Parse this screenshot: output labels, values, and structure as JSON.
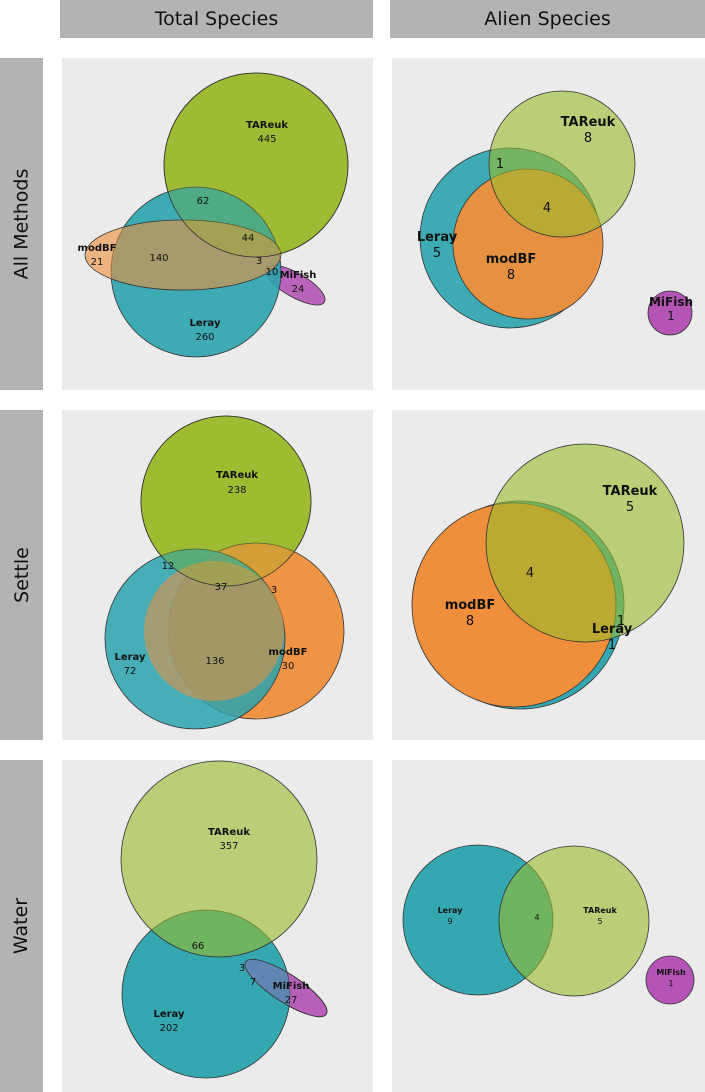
{
  "colors": {
    "tareuk": "#9aba2c",
    "leray": "#2aa3ae",
    "modbf": "#ef8f3c",
    "mifish": "#b455b6",
    "panel_bg": "#ebebeb",
    "header_bg": "#b3b3b3"
  },
  "columns": [
    "Total Species",
    "Alien Species"
  ],
  "rows": [
    "All Methods",
    "Settle",
    "Water"
  ],
  "panels": {
    "total_all": {
      "sets": {
        "tareuk": "TAReuk",
        "leray": "Leray",
        "modbf": "modBF",
        "mifish": "MiFish"
      },
      "counts": {
        "tareuk": "445",
        "leray": "260",
        "modbf": "21",
        "mifish": "24",
        "t_l": "62",
        "t_l_m": "44",
        "l_m": "140",
        "three": "3",
        "ten": "10"
      }
    },
    "alien_all": {
      "sets": {
        "tareuk": "TAReuk",
        "leray": "Leray",
        "modbf": "modBF",
        "mifish": "MiFish"
      },
      "counts": {
        "tareuk": "8",
        "leray": "5",
        "modbf": "8",
        "mifish": "1",
        "t_l": "1",
        "t_l_m": "4"
      }
    },
    "total_settle": {
      "sets": {
        "tareuk": "TAReuk",
        "leray": "Leray",
        "modbf": "modBF"
      },
      "counts": {
        "tareuk": "238",
        "leray": "72",
        "modbf": "30",
        "t_l": "12",
        "t_l_m": "37",
        "t_m": "3",
        "l_m": "136"
      }
    },
    "alien_settle": {
      "sets": {
        "tareuk": "TAReuk",
        "leray": "Leray",
        "modbf": "modBF"
      },
      "counts": {
        "tareuk": "5",
        "leray": "1",
        "modbf": "8",
        "t_l_m": "4",
        "t_l": "1"
      }
    },
    "total_water": {
      "sets": {
        "tareuk": "TAReuk",
        "leray": "Leray",
        "mifish": "MiFish"
      },
      "counts": {
        "tareuk": "357",
        "leray": "202",
        "mifish": "27",
        "t_l": "66",
        "three": "3",
        "seven": "7"
      }
    },
    "alien_water": {
      "sets": {
        "tareuk": "TAReuk",
        "leray": "Leray",
        "mifish": "MiFish"
      },
      "counts": {
        "tareuk": "5",
        "leray": "9",
        "mifish": "1",
        "t_l": "4"
      }
    }
  }
}
